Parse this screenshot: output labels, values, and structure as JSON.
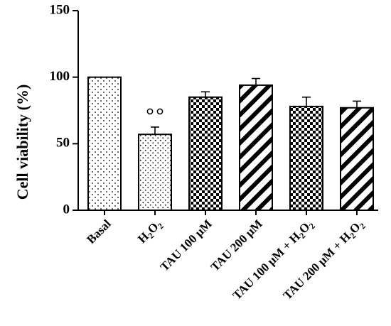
{
  "chart_data": {
    "type": "bar",
    "ylabel": "Cell viability (%)",
    "xlabel": "",
    "ylim": [
      0,
      150
    ],
    "yticks": [
      "0",
      "50",
      "100",
      "150"
    ],
    "grid": false,
    "categories": [
      "Basal",
      "H2O2",
      "TAU 100 μM",
      "TAU 200 μM",
      "TAU 100 μM + H2O2",
      "TAU 200 μM + H2O2"
    ],
    "values": [
      100,
      57,
      85,
      94,
      78,
      77
    ],
    "errors": [
      0,
      5.5,
      4,
      5,
      7,
      5
    ],
    "patterns": [
      "sparse-dots",
      "dots",
      "checker",
      "diagonal-stripes",
      "checker",
      "diagonal-stripes"
    ],
    "significance": [
      {
        "category": "H2O2",
        "marker": "°°"
      }
    ]
  }
}
